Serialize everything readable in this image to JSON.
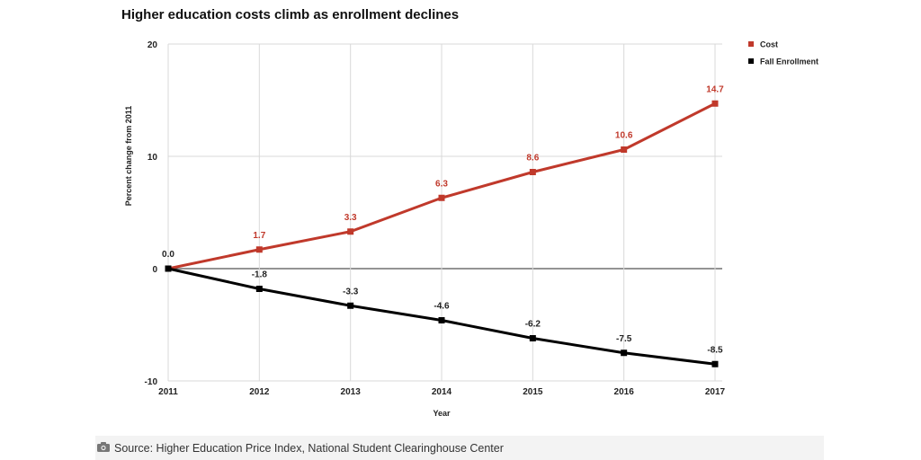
{
  "title": "Higher education costs climb as enrollment declines",
  "source": "Source: Higher Education Price Index, National Student Clearinghouse Center",
  "icons": {
    "source_icon": "camera-icon"
  },
  "colors": {
    "cost": "#c0392b",
    "enrollment": "#000000",
    "grid": "#d9d9d9",
    "zero_line": "#555555"
  },
  "chart_data": {
    "type": "line",
    "title": "Higher education costs climb as enrollment declines",
    "xlabel": "Year",
    "ylabel": "Percent change from 2011",
    "x": [
      "2011",
      "2012",
      "2013",
      "2014",
      "2015",
      "2016",
      "2017"
    ],
    "ylim": [
      -10,
      20
    ],
    "yticks": [
      "20",
      "10",
      "0",
      "-10"
    ],
    "grid": true,
    "legend_position": "top-right",
    "series": [
      {
        "name": "Cost",
        "color": "#c0392b",
        "values": [
          0.0,
          1.7,
          3.3,
          6.3,
          8.6,
          10.6,
          14.7
        ],
        "labels": [
          "0.0",
          "1.7",
          "3.3",
          "6.3",
          "8.6",
          "10.6",
          "14.7"
        ]
      },
      {
        "name": "Fall Enrollment",
        "color": "#000000",
        "values": [
          0.0,
          -1.8,
          -3.3,
          -4.6,
          -6.2,
          -7.5,
          -8.5
        ],
        "labels": [
          "",
          "-1.8",
          "-3.3",
          "-4.6",
          "-6.2",
          "-7.5",
          "-8.5"
        ]
      }
    ]
  }
}
